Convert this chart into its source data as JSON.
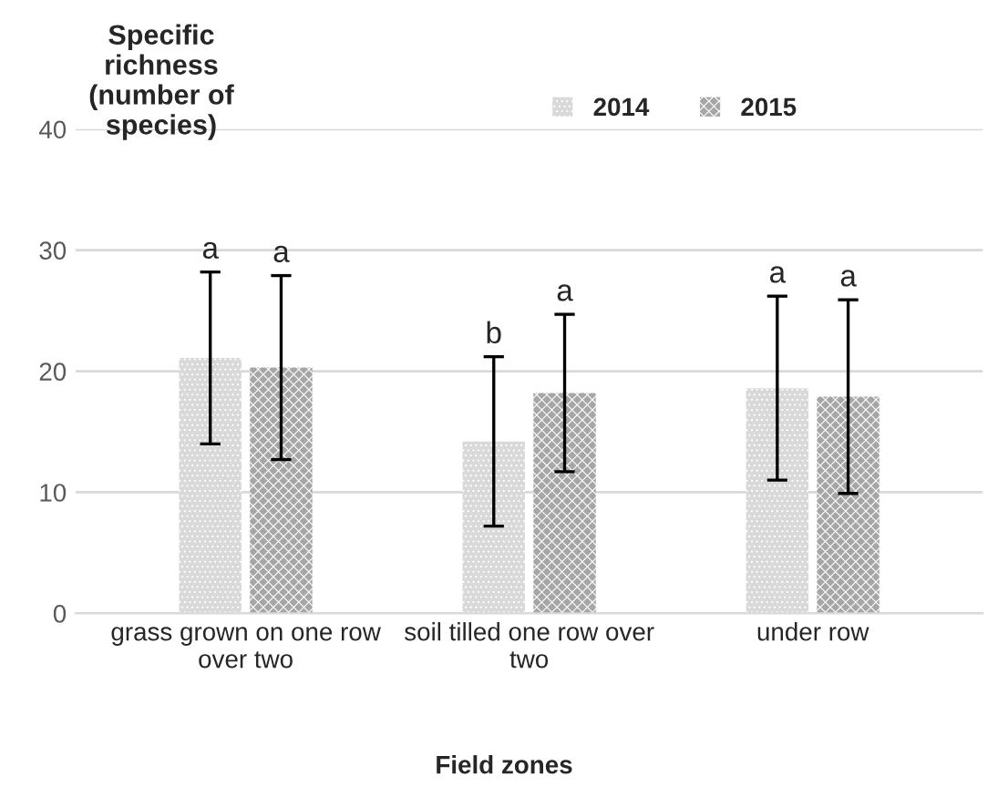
{
  "chart_data": {
    "type": "bar",
    "ylabel": "Specific\nrichness\n(number of\nspecies)",
    "xlabel": "Field zones",
    "categories": [
      "grass grown on one row\nover two",
      "soil tilled one row over\ntwo",
      "under row"
    ],
    "series": [
      {
        "name": "2014",
        "color": "#d9d9d9",
        "values": [
          21.1,
          14.2,
          18.6
        ],
        "errors": [
          7.1,
          7.0,
          7.6
        ]
      },
      {
        "name": "2015",
        "color": "#a6a6a6",
        "values": [
          20.3,
          18.2,
          17.9
        ],
        "errors": [
          7.6,
          6.5,
          8.0
        ]
      }
    ],
    "annotations": [
      "a",
      "a",
      "b",
      "a",
      "a",
      "a"
    ],
    "ylim": [
      0,
      40
    ],
    "yticks": [
      0,
      10,
      20,
      30,
      40
    ],
    "grid": "y",
    "legend": "top right"
  }
}
